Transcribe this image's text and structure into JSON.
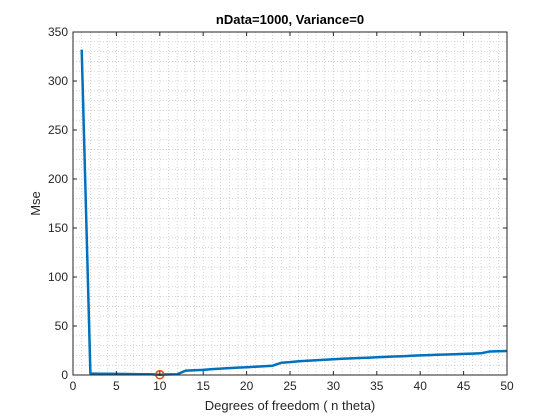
{
  "chart_data": {
    "type": "line",
    "title": "nData=1000, Variance=0",
    "xlabel": "Degrees of freedom ( n theta)",
    "ylabel": "Mse",
    "xlim": [
      0,
      50
    ],
    "ylim": [
      0,
      350
    ],
    "xticks": [
      0,
      5,
      10,
      15,
      20,
      25,
      30,
      35,
      40,
      45,
      50
    ],
    "yticks": [
      0,
      50,
      100,
      150,
      200,
      250,
      300,
      350
    ],
    "grid": "minor-dotted",
    "series": [
      {
        "color": "#0072BD",
        "x": [
          1,
          2,
          3,
          4,
          5,
          6,
          7,
          8,
          9,
          10,
          11,
          12,
          13,
          14,
          15,
          16,
          17,
          18,
          19,
          20,
          21,
          22,
          23,
          24,
          25,
          26,
          27,
          28,
          29,
          30,
          31,
          32,
          33,
          34,
          35,
          36,
          37,
          38,
          39,
          40,
          41,
          42,
          43,
          44,
          45,
          46,
          47,
          48,
          49,
          50
        ],
        "y": [
          332,
          1.5,
          1.3,
          1.2,
          1.1,
          1.0,
          0.9,
          0.8,
          0.7,
          0.3,
          0.6,
          0.8,
          4.5,
          4.8,
          5.2,
          6,
          6.5,
          7,
          7.5,
          8,
          8.5,
          9,
          9.5,
          12.5,
          13.2,
          14,
          14.5,
          15,
          15.5,
          16,
          16.5,
          16.9,
          17.3,
          17.7,
          18.1,
          18.5,
          18.9,
          19.2,
          19.6,
          20,
          20.3,
          20.6,
          20.9,
          21.2,
          21.5,
          21.8,
          22.1,
          24,
          24.3,
          24.5
        ]
      }
    ],
    "highlight": {
      "x": 10,
      "y": 0.3,
      "color": "#D95319"
    }
  }
}
